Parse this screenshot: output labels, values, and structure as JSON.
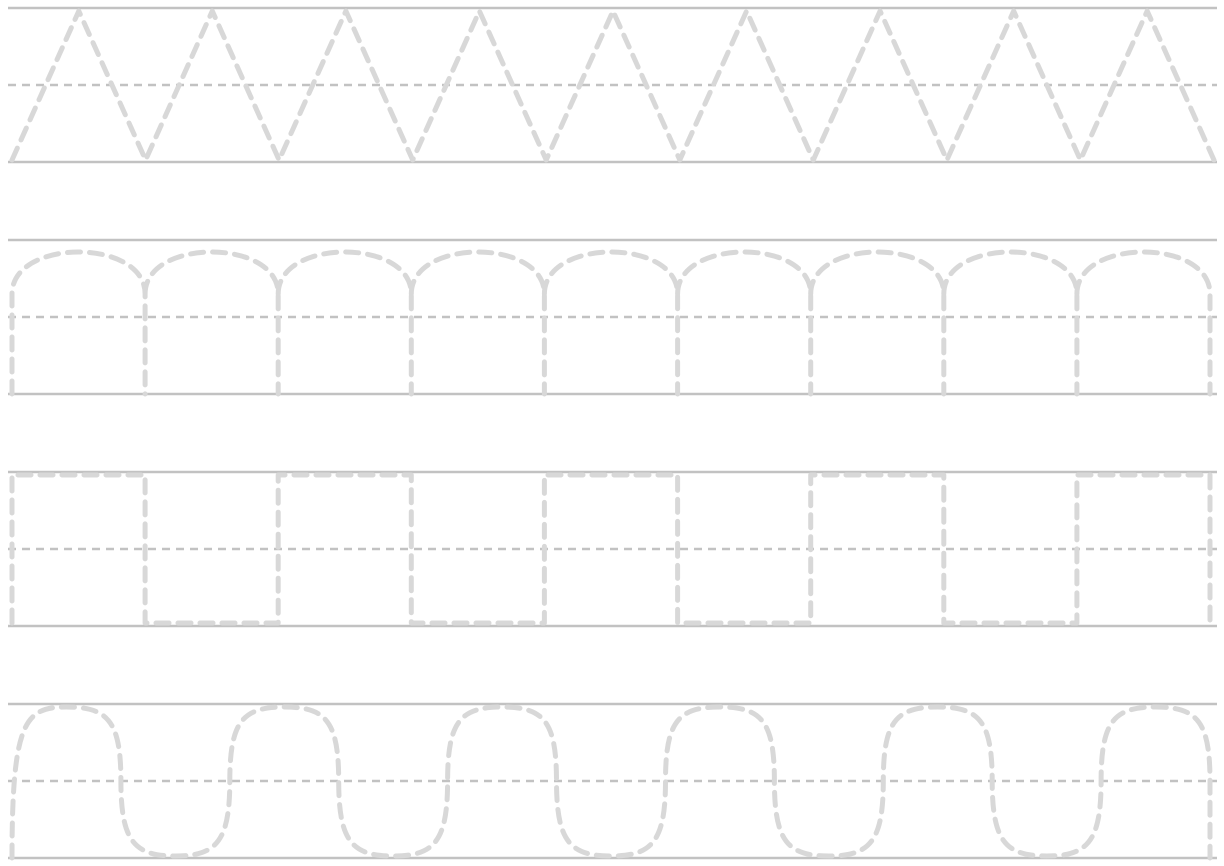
{
  "worksheet": {
    "colors": {
      "guide_line": "#c2c2c2",
      "trace_path": "#d8d8d8",
      "background": "#ffffff"
    },
    "rows": [
      {
        "pattern": "zigzag",
        "repeat_count": 9
      },
      {
        "pattern": "arches",
        "repeat_count": 9
      },
      {
        "pattern": "square-wave",
        "repeat_count": 9
      },
      {
        "pattern": "wave",
        "repeat_count": 5.5
      }
    ]
  }
}
